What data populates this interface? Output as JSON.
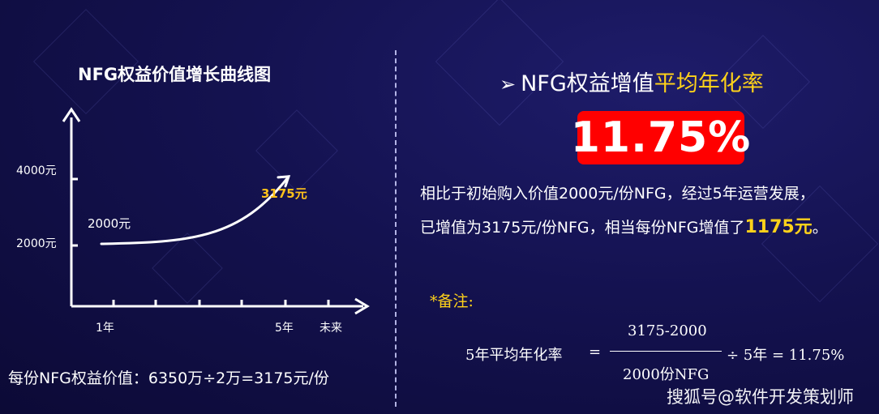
{
  "chart_data": {
    "type": "line",
    "title": "NFG权益价值增长曲线图",
    "x": [
      "1年",
      "5年",
      "未来"
    ],
    "y_ticks": [
      "2000元",
      "4000元"
    ],
    "series": [
      {
        "values": [
          2000,
          3175
        ],
        "x": [
          "1年",
          "5年"
        ]
      }
    ],
    "point_labels": {
      "start": "2000元",
      "end": "3175元"
    },
    "xlabel": "",
    "ylabel": "",
    "grid": false
  },
  "footer_formula": "每份NFG权益价值：6350万÷2万=3175元/份",
  "right_panel": {
    "title_prefix": "NFG权益增值",
    "title_accent": "平均年化率",
    "rate": "11.75%",
    "line1": "相比于初始购入价值2000元/份NFG，经过5年运营发展，",
    "line2_prefix": "已增值为3175元/份NFG，相当每份NFG增值了",
    "line2_amount": "1175元",
    "line2_suffix": "。",
    "note_label": "*备注:",
    "formula": {
      "lhs": "5年平均年化率",
      "eq": "=",
      "numerator": "3175-2000",
      "denominator": "2000份NFG",
      "rhs": "÷ 5年  = 11.75%"
    }
  },
  "watermark": "搜狐号@软件开发策划师",
  "colors": {
    "accent": "#ffd21a",
    "rate_box": "#ff0000",
    "background": "#141250"
  }
}
